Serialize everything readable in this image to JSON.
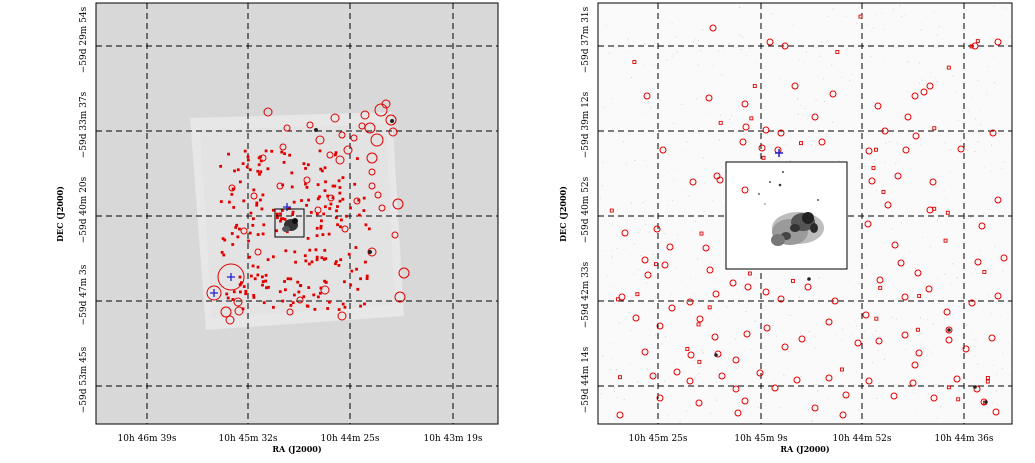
{
  "panels": [
    {
      "id": "left",
      "background": "#d8d8d8",
      "xlabel": "RA (J2000)",
      "ylabel": "DEC (J2000)",
      "ra_ticks": [
        "10h 46m 39s",
        "10h 45m 32s",
        "10h 44m 25s",
        "10h 43m 19s"
      ],
      "dec_ticks": [
        "−59d 29m 54s",
        "−59d 33m 37s",
        "−59d 40m 20s",
        "−59d 47m 3s",
        "−59d 53m 45s"
      ]
    },
    {
      "id": "right",
      "background": "#ffffff",
      "xlabel": "RA (J2000)",
      "ylabel": "DEC (J2000)",
      "ra_ticks": [
        "10h 45m 25s",
        "10h 45m 9s",
        "10h 44m 52s",
        "10h 44m 36s"
      ],
      "dec_ticks": [
        "−59d 37m 31s",
        "−59d 39m 12s",
        "−59d 40m 52s",
        "−59d 42m 33s",
        "−59d 44m 14s"
      ]
    }
  ],
  "colors": {
    "source_marker": "#e00000",
    "cross_marker": "#2020d0",
    "grid": "#000000"
  }
}
